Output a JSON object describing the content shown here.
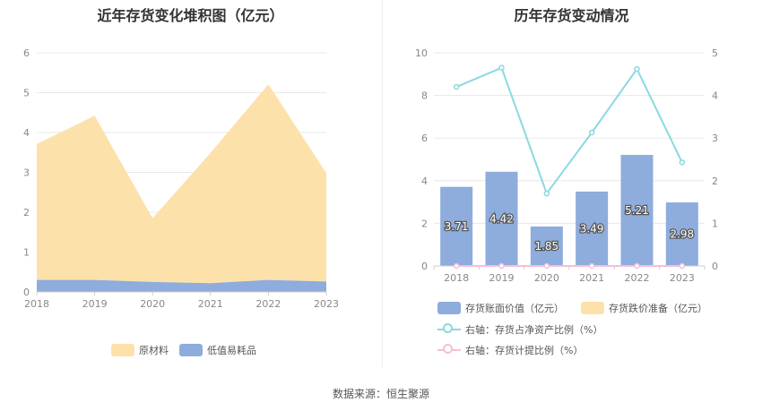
{
  "left_title": "近年存货变化堆积图（亿元）",
  "right_title": "历年存货变动情况",
  "footer": "数据来源：恒生聚源",
  "colors": {
    "raw": "#fde1ab",
    "low": "#8eacdc",
    "bar": "#8eacdc",
    "bar2": "#fde1ab",
    "ratio": "#8ad9e0",
    "provision": "#f4bfd9",
    "grid": "#e8e8e8",
    "axis": "#cccccc"
  },
  "chart_data": [
    {
      "type": "area",
      "stacked": true,
      "x": [
        "2018",
        "2019",
        "2020",
        "2021",
        "2022",
        "2023"
      ],
      "ylim": [
        0,
        6
      ],
      "yticks": [
        "0",
        "1",
        "2",
        "3",
        "4",
        "5",
        "6"
      ],
      "series": [
        {
          "name": "原材料",
          "values": [
            3.41,
            4.12,
            1.6,
            3.27,
            4.91,
            2.72
          ],
          "color": "#fde1ab"
        },
        {
          "name": "低值易耗品",
          "values": [
            0.3,
            0.3,
            0.25,
            0.22,
            0.3,
            0.26
          ],
          "color": "#8eacdc"
        }
      ],
      "legend": [
        "原材料",
        "低值易耗品"
      ],
      "legend_position": "bottom"
    },
    {
      "type": "bar",
      "x": [
        "2018",
        "2019",
        "2020",
        "2021",
        "2022",
        "2023"
      ],
      "ylim_left": [
        0,
        10
      ],
      "ylim_right": [
        0,
        5
      ],
      "yticks_left": [
        "0",
        "2",
        "4",
        "6",
        "8",
        "10"
      ],
      "yticks_right": [
        "0",
        "1",
        "2",
        "3",
        "4",
        "5"
      ],
      "series": [
        {
          "name": "存货账面价值（亿元）",
          "type": "bar",
          "axis": "left",
          "values": [
            3.71,
            4.42,
            1.85,
            3.49,
            5.21,
            2.98
          ],
          "labels": [
            "3.71",
            "4.42",
            "1.85",
            "3.49",
            "5.21",
            "2.98"
          ]
        },
        {
          "name": "存货跌价准备（亿元）",
          "type": "bar",
          "axis": "left",
          "values": [
            0,
            0,
            0,
            0,
            0,
            0
          ]
        },
        {
          "name": "右轴：存货占净资产比例（%）",
          "type": "line",
          "axis": "right",
          "values": [
            4.2,
            4.65,
            1.7,
            3.13,
            4.62,
            2.43
          ]
        },
        {
          "name": "右轴：存货计提比例（%）",
          "type": "line",
          "axis": "right",
          "values": [
            0,
            0,
            0,
            0,
            0,
            0
          ]
        }
      ],
      "legend_position": "bottom"
    }
  ]
}
